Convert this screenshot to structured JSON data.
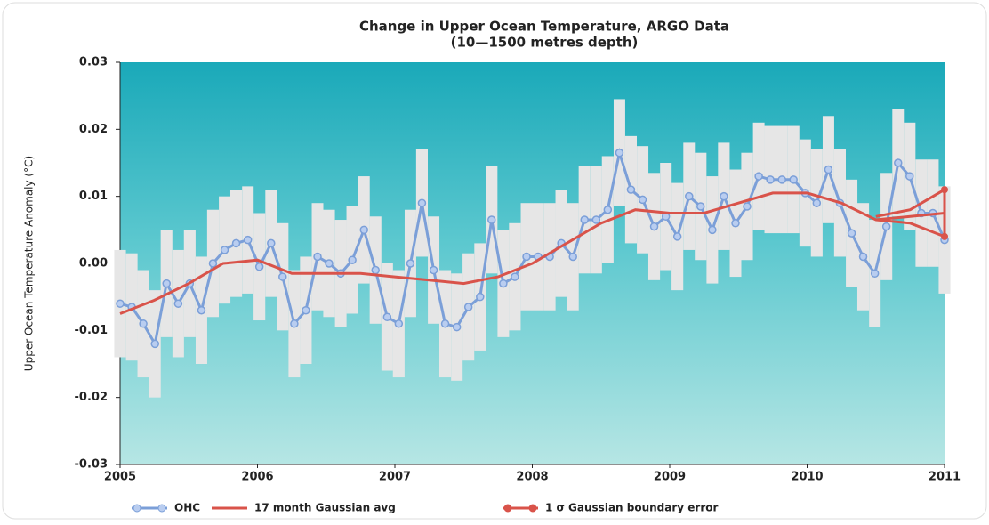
{
  "chart_data": {
    "type": "line",
    "title": "Change in Upper Ocean Temperature, ARGO Data",
    "subtitle": "(10—1500 metres depth)",
    "y_label": "Upper Ocean Temperature Anomaly (°C)",
    "xlim": [
      2005,
      2011
    ],
    "xticks": [
      2005,
      2006,
      2007,
      2008,
      2009,
      2010,
      2011
    ],
    "ylim": [
      -0.03,
      0.03
    ],
    "yticks": [
      -0.03,
      -0.02,
      -0.01,
      {
        "value": 0,
        "label": "0.00"
      },
      0.01,
      0.02,
      0.03
    ],
    "series": [
      {
        "name": "OHC",
        "color": "#7b9fd8",
        "markers": true,
        "error": 0.008,
        "error_color": "#e6e6e6",
        "x": [
          2005.0,
          2005.085,
          2005.169,
          2005.254,
          2005.338,
          2005.423,
          2005.507,
          2005.592,
          2005.676,
          2005.761,
          2005.845,
          2005.93,
          2006.014,
          2006.099,
          2006.183,
          2006.268,
          2006.352,
          2006.437,
          2006.521,
          2006.606,
          2006.69,
          2006.775,
          2006.859,
          2006.944,
          2007.028,
          2007.113,
          2007.197,
          2007.282,
          2007.366,
          2007.451,
          2007.535,
          2007.62,
          2007.704,
          2007.789,
          2007.873,
          2007.958,
          2008.042,
          2008.127,
          2008.211,
          2008.296,
          2008.38,
          2008.465,
          2008.549,
          2008.634,
          2008.718,
          2008.803,
          2008.887,
          2008.972,
          2009.056,
          2009.141,
          2009.225,
          2009.31,
          2009.394,
          2009.479,
          2009.563,
          2009.648,
          2009.732,
          2009.817,
          2009.901,
          2009.986,
          2010.07,
          2010.155,
          2010.239,
          2010.324,
          2010.408,
          2010.493,
          2010.577,
          2010.662,
          2010.746,
          2010.831,
          2010.915,
          2011.0
        ],
        "values": [
          -0.006,
          -0.0065,
          -0.009,
          -0.012,
          -0.003,
          -0.006,
          -0.003,
          -0.007,
          0,
          0.002,
          0.003,
          0.0035,
          -0.0005,
          0.003,
          -0.002,
          -0.009,
          -0.007,
          0.001,
          0,
          -0.0015,
          0.0005,
          0.005,
          -0.001,
          -0.008,
          -0.009,
          0,
          0.009,
          -0.001,
          -0.009,
          -0.0095,
          -0.0065,
          -0.005,
          0.0065,
          -0.003,
          -0.002,
          0.001,
          0.001,
          0.001,
          0.003,
          0.001,
          0.0065,
          0.0065,
          0.008,
          0.0165,
          0.011,
          0.0095,
          0.0055,
          0.007,
          0.004,
          0.01,
          0.0085,
          0.005,
          0.01,
          0.006,
          0.0085,
          0.013,
          0.0125,
          0.0125,
          0.0125,
          0.0105,
          0.009,
          0.014,
          0.009,
          0.0045,
          0.001,
          -0.0015,
          0.0055,
          0.015,
          0.013,
          0.0075,
          0.0075,
          0.0035
        ]
      },
      {
        "name": "17 month Gaussian avg",
        "color": "#d9534a",
        "markers": false,
        "x": [
          2005,
          2005.25,
          2005.5,
          2005.75,
          2006,
          2006.25,
          2006.5,
          2006.75,
          2007,
          2007.25,
          2007.5,
          2007.75,
          2008,
          2008.25,
          2008.5,
          2008.75,
          2009,
          2009.25,
          2009.5,
          2009.75,
          2010,
          2010.25,
          2010.5,
          2010.75,
          2011
        ],
        "values": [
          -0.0075,
          -0.0055,
          -0.003,
          0,
          0.0005,
          -0.0015,
          -0.0015,
          -0.0015,
          -0.002,
          -0.0025,
          -0.003,
          -0.002,
          0,
          0.003,
          0.006,
          0.008,
          0.0075,
          0.0075,
          0.009,
          0.0105,
          0.0105,
          0.009,
          0.0065,
          0.007,
          0.0075
        ]
      },
      {
        "name": "1 σ Gaussian boundary error",
        "color": "#d9534a",
        "markers": true,
        "x": [
          2010.5,
          2010.75,
          2011
        ],
        "values": [
          0.007,
          0.008,
          0.011
        ],
        "lower": [
          0.0065,
          0.006,
          0.004
        ]
      }
    ]
  }
}
